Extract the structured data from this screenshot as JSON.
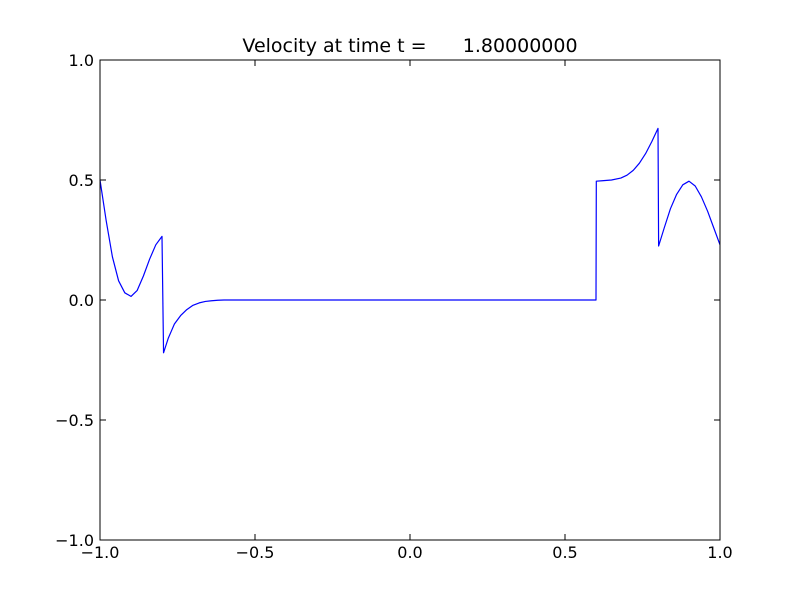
{
  "chart_data": {
    "type": "line",
    "title": "Velocity at time t =      1.80000000",
    "xlabel": "",
    "ylabel": "",
    "xlim": [
      -1.0,
      1.0
    ],
    "ylim": [
      -1.0,
      1.0
    ],
    "grid": false,
    "x_ticks": [
      -1.0,
      -0.5,
      0.0,
      0.5,
      1.0
    ],
    "y_ticks": [
      -1.0,
      -0.5,
      0.0,
      0.5,
      1.0
    ],
    "x_tick_labels": [
      "−1.0",
      "−0.5",
      "0.0",
      "0.5",
      "1.0"
    ],
    "y_tick_labels": [
      "−1.0",
      "−0.5",
      "0.0",
      "0.5",
      "1.0"
    ],
    "series": [
      {
        "color": "#0000ff",
        "x": [
          -1.0,
          -0.98,
          -0.96,
          -0.94,
          -0.92,
          -0.9,
          -0.88,
          -0.86,
          -0.84,
          -0.82,
          -0.8,
          -0.795,
          -0.79,
          -0.78,
          -0.77,
          -0.76,
          -0.74,
          -0.72,
          -0.7,
          -0.68,
          -0.66,
          -0.64,
          -0.62,
          -0.6,
          -0.5,
          -0.3,
          0.0,
          0.3,
          0.5,
          0.6,
          0.601,
          0.62,
          0.65,
          0.68,
          0.7,
          0.72,
          0.74,
          0.76,
          0.78,
          0.8,
          0.802,
          0.82,
          0.84,
          0.86,
          0.88,
          0.9,
          0.92,
          0.94,
          0.96,
          0.98,
          1.0
        ],
        "y": [
          0.5,
          0.33,
          0.18,
          0.08,
          0.03,
          0.015,
          0.04,
          0.1,
          0.17,
          0.23,
          0.265,
          -0.22,
          -0.2,
          -0.16,
          -0.13,
          -0.1,
          -0.065,
          -0.04,
          -0.022,
          -0.012,
          -0.006,
          -0.003,
          -0.001,
          0.0,
          0.0,
          0.0,
          0.0,
          0.0,
          0.0,
          0.0,
          0.495,
          0.497,
          0.5,
          0.508,
          0.52,
          0.54,
          0.57,
          0.61,
          0.66,
          0.715,
          0.225,
          0.3,
          0.38,
          0.44,
          0.48,
          0.495,
          0.475,
          0.43,
          0.37,
          0.3,
          0.23
        ]
      }
    ]
  }
}
